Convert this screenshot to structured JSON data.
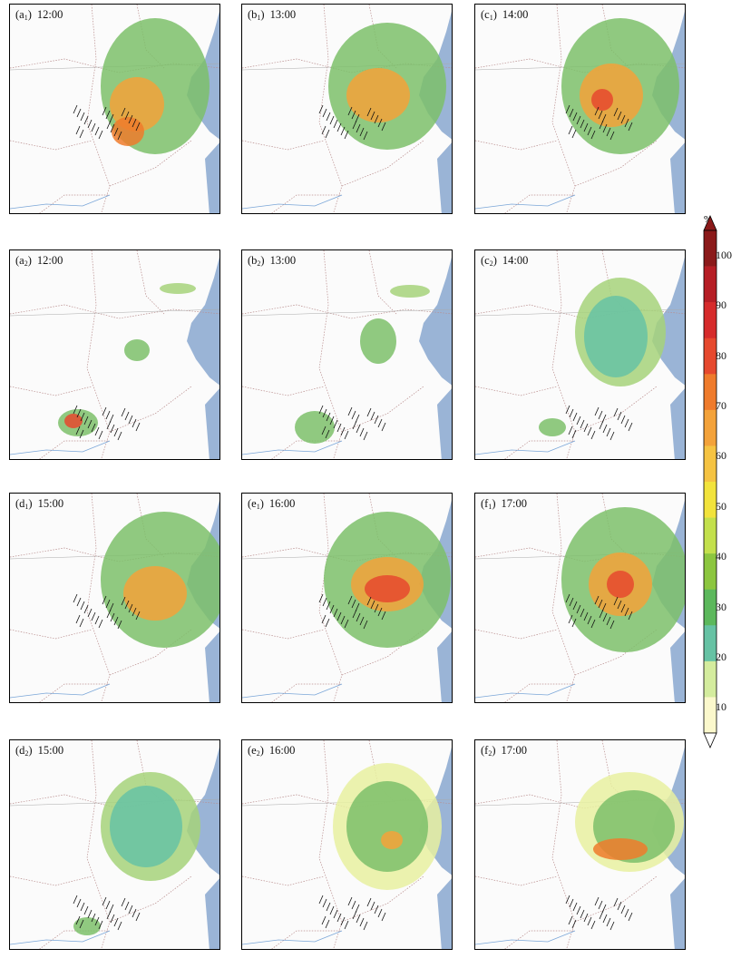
{
  "chart_data": {
    "type": "heatmap",
    "panels": [
      {
        "id": "a",
        "sub": "1",
        "time": "12:00"
      },
      {
        "id": "b",
        "sub": "1",
        "time": "13:00"
      },
      {
        "id": "c",
        "sub": "1",
        "time": "14:00"
      },
      {
        "id": "a",
        "sub": "2",
        "time": "12:00"
      },
      {
        "id": "b",
        "sub": "2",
        "time": "13:00"
      },
      {
        "id": "c",
        "sub": "2",
        "time": "14:00"
      },
      {
        "id": "d",
        "sub": "1",
        "time": "15:00"
      },
      {
        "id": "e",
        "sub": "1",
        "time": "16:00"
      },
      {
        "id": "f",
        "sub": "1",
        "time": "17:00"
      },
      {
        "id": "d",
        "sub": "2",
        "time": "15:00"
      },
      {
        "id": "e",
        "sub": "2",
        "time": "16:00"
      },
      {
        "id": "f",
        "sub": "2",
        "time": "17:00"
      }
    ],
    "colorbar": {
      "unit": "%",
      "ticks": [
        "10",
        "20",
        "30",
        "40",
        "50",
        "60",
        "70",
        "80",
        "90",
        "100"
      ],
      "range": [
        5,
        105
      ],
      "extend": "both",
      "colors": [
        "#fbf8cc",
        "#d4ec9e",
        "#66c2a4",
        "#5cb85c",
        "#8cc63f",
        "#c3e04c",
        "#f2e33c",
        "#f5c342",
        "#f3a23a",
        "#ef7b2c",
        "#e6492e",
        "#d62b2b",
        "#b61e25",
        "#8b1a1a"
      ]
    }
  }
}
